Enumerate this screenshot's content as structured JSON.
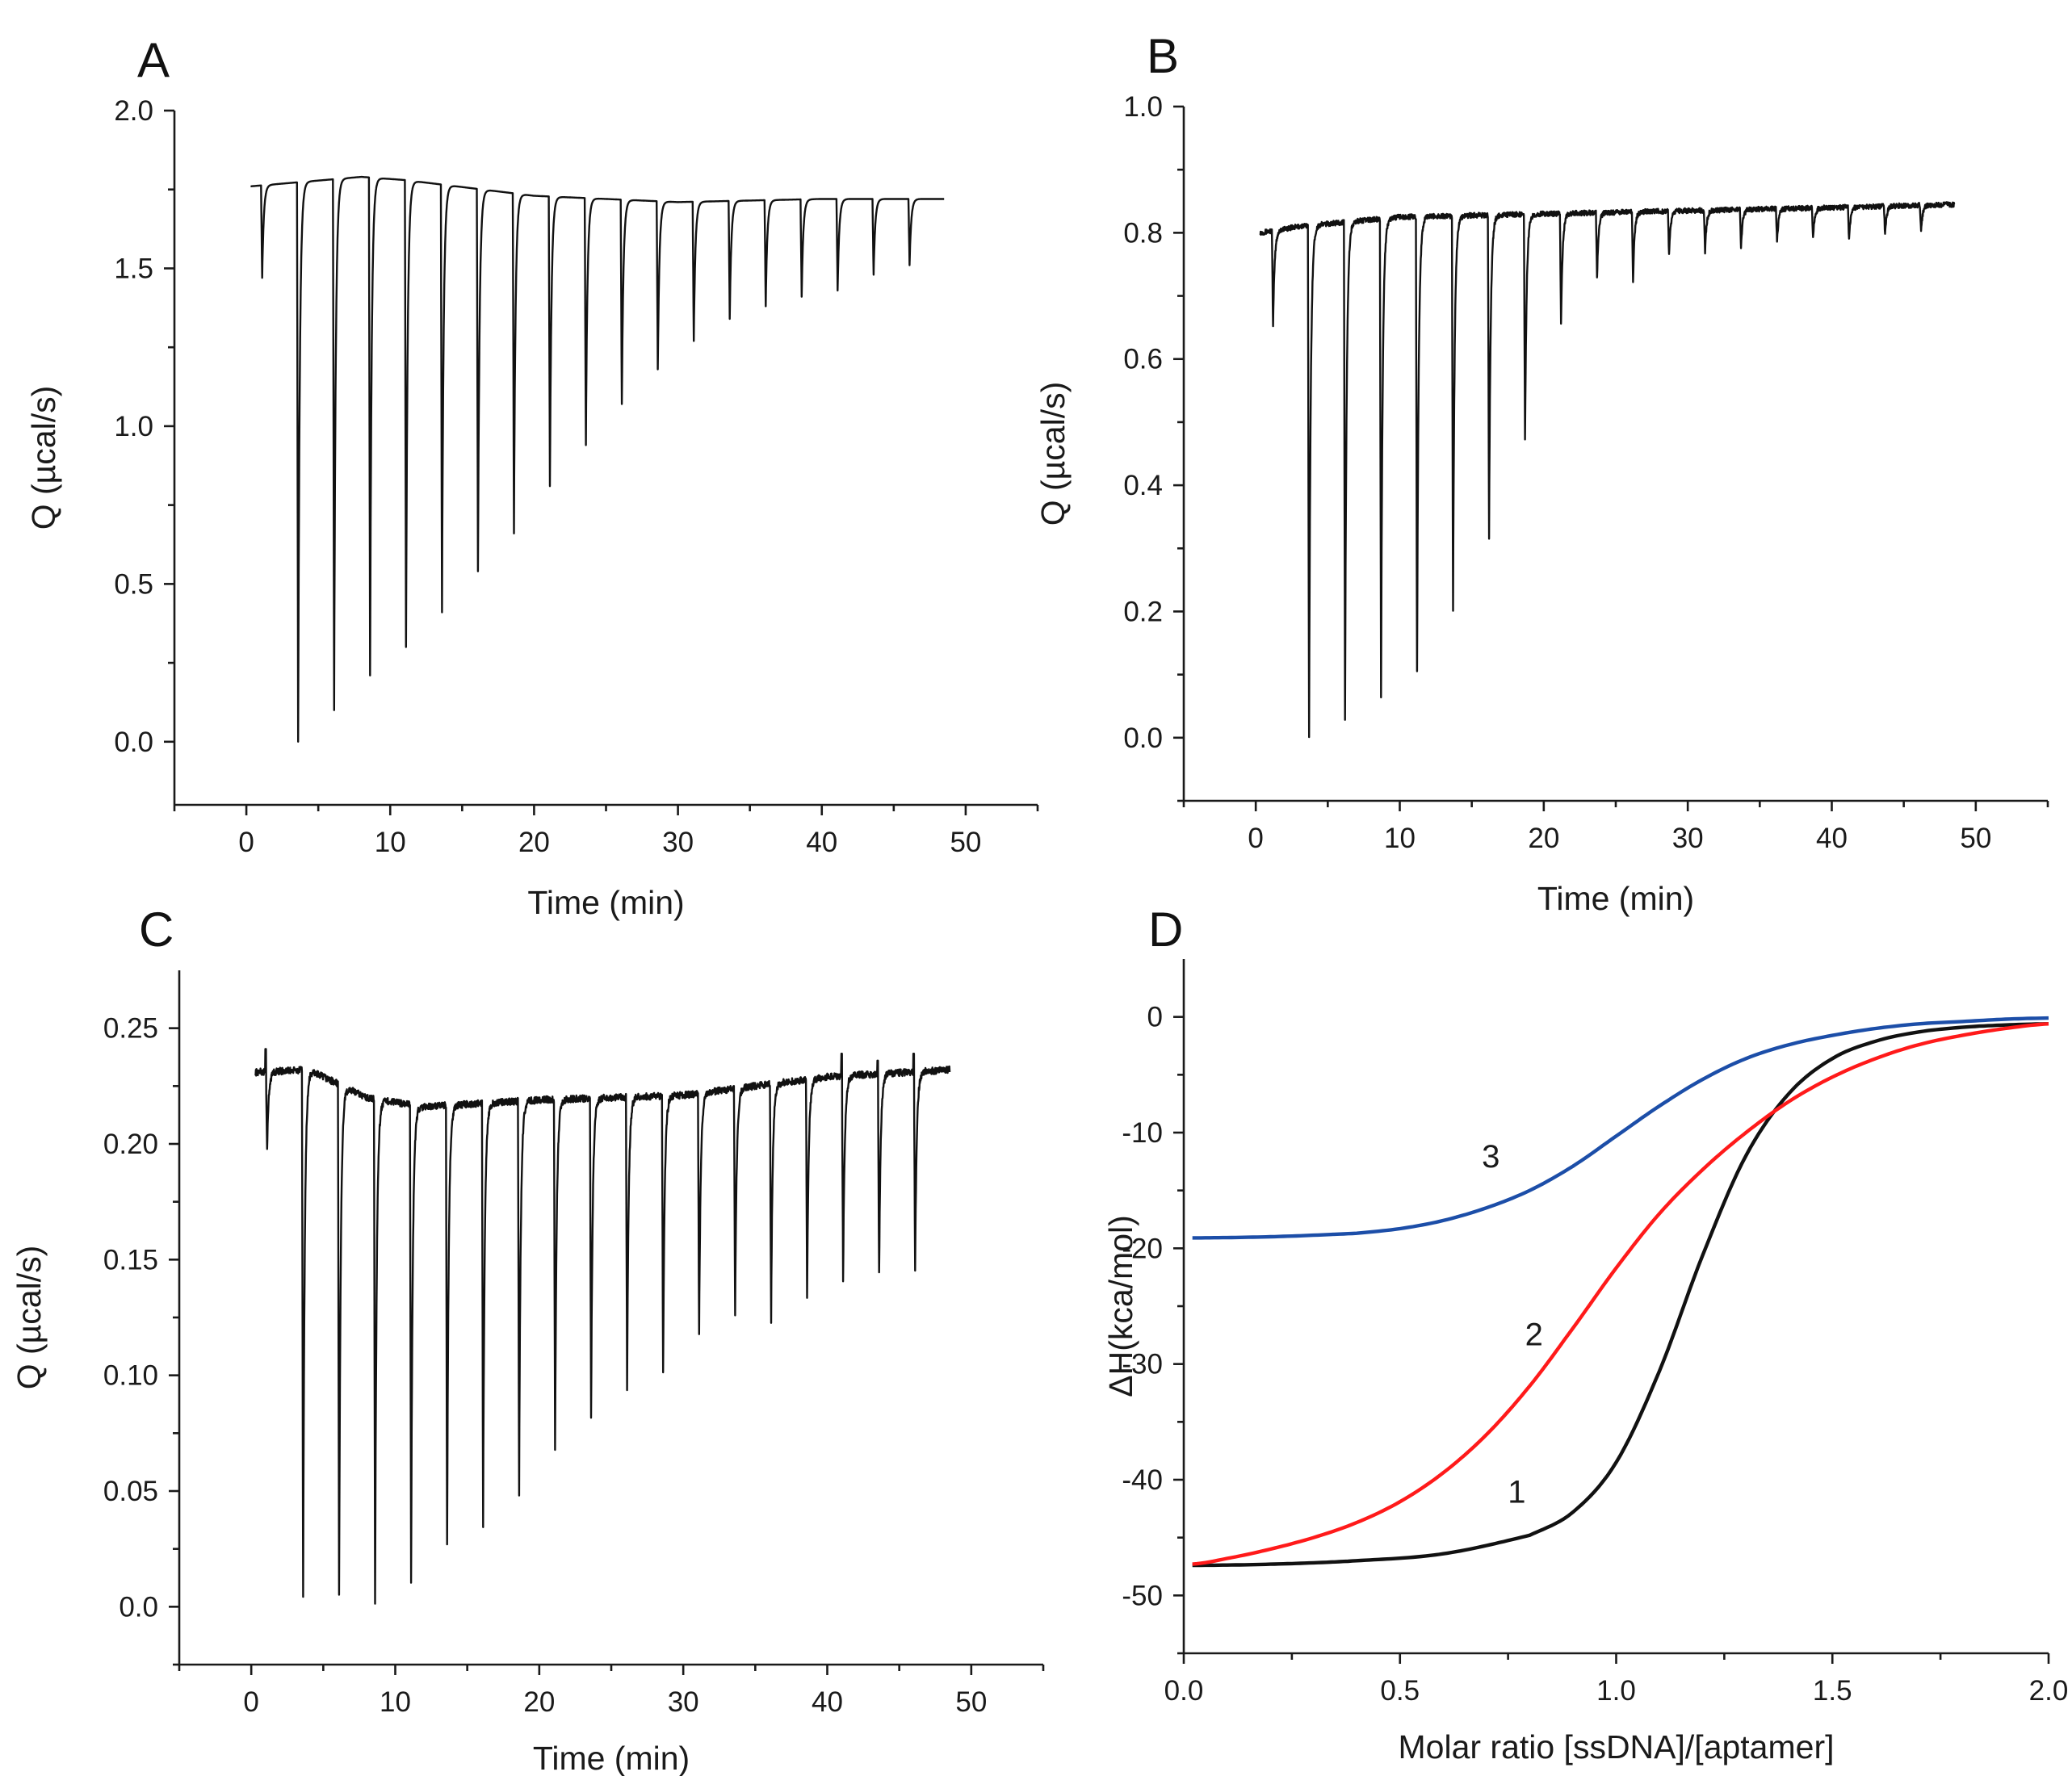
{
  "colors": {
    "axis": "#1a1a1a",
    "trace": "#111111",
    "curve1": "#111111",
    "curve2": "#ff1a1a",
    "curve3": "#1c4ea8"
  },
  "chart_data": [
    {
      "id": "A",
      "type": "line",
      "panel_label": "A",
      "xlabel": "Time (min)",
      "ylabel": "Q (µcal/s)",
      "xlim": [
        -5,
        55
      ],
      "ylim": [
        -0.2,
        2.0
      ],
      "xticks": [
        0,
        10,
        20,
        30,
        40,
        50
      ],
      "xtick_labels": [
        "0",
        "10",
        "20",
        "30",
        "40",
        "50"
      ],
      "yticks": [
        0.0,
        0.5,
        1.0,
        1.5,
        2.0
      ],
      "ytick_labels": [
        "0.0",
        "0.5",
        "1.0",
        "1.5",
        "2.0"
      ],
      "trace": {
        "t_start": 0.3,
        "t_end": 48.5,
        "baseline_t": [
          0.3,
          8,
          11,
          20,
          30,
          40,
          48.5
        ],
        "baseline_q": [
          1.76,
          1.79,
          1.78,
          1.73,
          1.71,
          1.72,
          1.72
        ],
        "peak_t": [
          1.1,
          3.6,
          6.1,
          8.6,
          11.1,
          13.6,
          16.1,
          18.6,
          21.1,
          23.6,
          26.1,
          28.6,
          31.1,
          33.6,
          36.1,
          38.6,
          41.1,
          43.6,
          46.1
        ],
        "peak_min": [
          1.47,
          0.0,
          0.1,
          0.21,
          0.3,
          0.41,
          0.54,
          0.66,
          0.81,
          0.94,
          1.07,
          1.18,
          1.27,
          1.34,
          1.38,
          1.41,
          1.43,
          1.48,
          1.51
        ],
        "noise": 0.0
      }
    },
    {
      "id": "B",
      "type": "line",
      "panel_label": "B",
      "xlabel": "Time (min)",
      "ylabel": "Q (µcal/s)",
      "xlim": [
        -5,
        55
      ],
      "ylim": [
        -0.1,
        1.0
      ],
      "xticks": [
        0,
        10,
        20,
        30,
        40,
        50
      ],
      "xtick_labels": [
        "0",
        "10",
        "20",
        "30",
        "40",
        "50"
      ],
      "yticks": [
        0.0,
        0.2,
        0.4,
        0.6,
        0.8,
        1.0
      ],
      "ytick_labels": [
        "0.0",
        "0.2",
        "0.4",
        "0.6",
        "0.8",
        "1.0"
      ],
      "trace": {
        "t_start": 0.3,
        "t_end": 48.5,
        "baseline_t": [
          0.3,
          3,
          10,
          20,
          30,
          40,
          48.5
        ],
        "baseline_q": [
          0.8,
          0.81,
          0.825,
          0.83,
          0.835,
          0.84,
          0.845
        ],
        "peak_t": [
          1.2,
          3.7,
          6.2,
          8.7,
          11.2,
          13.7,
          16.2,
          18.7,
          21.2,
          23.7,
          26.2,
          28.7,
          31.2,
          33.7,
          36.2,
          38.7,
          41.2,
          43.7,
          46.2
        ],
        "peak_min": [
          0.65,
          0.0,
          0.03,
          0.065,
          0.105,
          0.205,
          0.315,
          0.47,
          0.655,
          0.73,
          0.725,
          0.765,
          0.77,
          0.775,
          0.785,
          0.79,
          0.79,
          0.795,
          0.8
        ],
        "noise": 0.004
      }
    },
    {
      "id": "C",
      "type": "line",
      "panel_label": "C",
      "xlabel": "Time (min)",
      "ylabel": "Q (µcal/s)",
      "xlim": [
        -5,
        55
      ],
      "ylim": [
        -0.025,
        0.275
      ],
      "xticks": [
        0,
        10,
        20,
        30,
        40,
        50
      ],
      "xtick_labels": [
        "0",
        "10",
        "20",
        "30",
        "40",
        "50"
      ],
      "yticks": [
        0.0,
        0.05,
        0.1,
        0.15,
        0.2,
        0.25
      ],
      "ytick_labels": [
        "0.0",
        "0.05",
        "0.10",
        "0.15",
        "0.20",
        "0.25"
      ],
      "trace": {
        "t_start": 0.3,
        "t_end": 48.5,
        "baseline_t": [
          0.3,
          4,
          8,
          12,
          20,
          30,
          40,
          48.5
        ],
        "baseline_q": [
          0.231,
          0.232,
          0.22,
          0.216,
          0.219,
          0.221,
          0.229,
          0.232
        ],
        "peak_t": [
          1.1,
          3.6,
          6.1,
          8.6,
          11.1,
          13.6,
          16.1,
          18.6,
          21.1,
          23.6,
          26.1,
          28.6,
          31.1,
          33.6,
          36.1,
          38.6,
          41.1,
          43.6,
          46.1
        ],
        "peak_min": [
          0.197,
          0.004,
          0.004,
          0.0,
          0.011,
          0.028,
          0.035,
          0.049,
          0.069,
          0.081,
          0.095,
          0.101,
          0.118,
          0.125,
          0.124,
          0.134,
          0.141,
          0.143,
          0.144
        ],
        "peak_spike": [
          0.241,
          0.0,
          0.0,
          0.0,
          0.0,
          0.0,
          0.0,
          0.0,
          0.0,
          0.0,
          0.0,
          0.0,
          0.0,
          0.0,
          0.0,
          0.0,
          0.239,
          0.236,
          0.239
        ],
        "noise": 0.0015
      }
    },
    {
      "id": "D",
      "type": "line",
      "panel_label": "D",
      "xlabel": "Molar ratio [ssDNA]/[aptamer]",
      "ylabel": "ΔH(kca/mol)",
      "xlim": [
        0.0,
        2.0
      ],
      "ylim": [
        -55,
        5
      ],
      "xticks": [
        0.0,
        0.5,
        1.0,
        1.5,
        2.0
      ],
      "xtick_labels": [
        "0.0",
        "0.5",
        "1.0",
        "1.5",
        "2.0"
      ],
      "yticks": [
        0,
        -10,
        -20,
        -30,
        -40,
        -50
      ],
      "ytick_labels": [
        "0",
        "-10",
        "-20",
        "-30",
        "-40",
        "-50"
      ],
      "series": [
        {
          "name": "1",
          "label": "1",
          "color_key": "curve1",
          "x": [
            0.02,
            0.2,
            0.4,
            0.6,
            0.8,
            0.9,
            1.0,
            1.1,
            1.2,
            1.3,
            1.4,
            1.5,
            1.6,
            1.7,
            1.8,
            1.9,
            2.0
          ],
          "y": [
            -47.4,
            -47.3,
            -47.0,
            -46.4,
            -44.8,
            -42.8,
            -38.5,
            -30.6,
            -20.6,
            -12.0,
            -6.6,
            -3.6,
            -2.1,
            -1.3,
            -0.9,
            -0.7,
            -0.6
          ],
          "label_at": [
            0.77,
            -42.0
          ]
        },
        {
          "name": "2",
          "label": "2",
          "color_key": "curve2",
          "x": [
            0.02,
            0.1,
            0.2,
            0.3,
            0.4,
            0.5,
            0.6,
            0.7,
            0.8,
            0.9,
            1.0,
            1.1,
            1.2,
            1.3,
            1.4,
            1.5,
            1.6,
            1.7,
            1.8,
            1.9,
            2.0
          ],
          "y": [
            -47.3,
            -46.8,
            -46.0,
            -45.0,
            -43.7,
            -41.9,
            -39.4,
            -36.1,
            -31.9,
            -26.9,
            -21.7,
            -17.0,
            -13.2,
            -10.0,
            -7.3,
            -5.2,
            -3.6,
            -2.4,
            -1.6,
            -1.0,
            -0.6
          ],
          "label_at": [
            0.81,
            -28.4
          ]
        },
        {
          "name": "3",
          "label": "3",
          "color_key": "curve3",
          "x": [
            0.02,
            0.2,
            0.4,
            0.5,
            0.6,
            0.7,
            0.8,
            0.9,
            1.0,
            1.1,
            1.2,
            1.3,
            1.4,
            1.5,
            1.6,
            1.7,
            1.8,
            1.9,
            2.0
          ],
          "y": [
            -19.1,
            -19.0,
            -18.7,
            -18.3,
            -17.6,
            -16.5,
            -15.0,
            -12.9,
            -10.3,
            -7.7,
            -5.4,
            -3.6,
            -2.4,
            -1.6,
            -1.0,
            -0.6,
            -0.4,
            -0.2,
            -0.1
          ],
          "label_at": [
            0.71,
            -13.0
          ]
        }
      ]
    }
  ]
}
